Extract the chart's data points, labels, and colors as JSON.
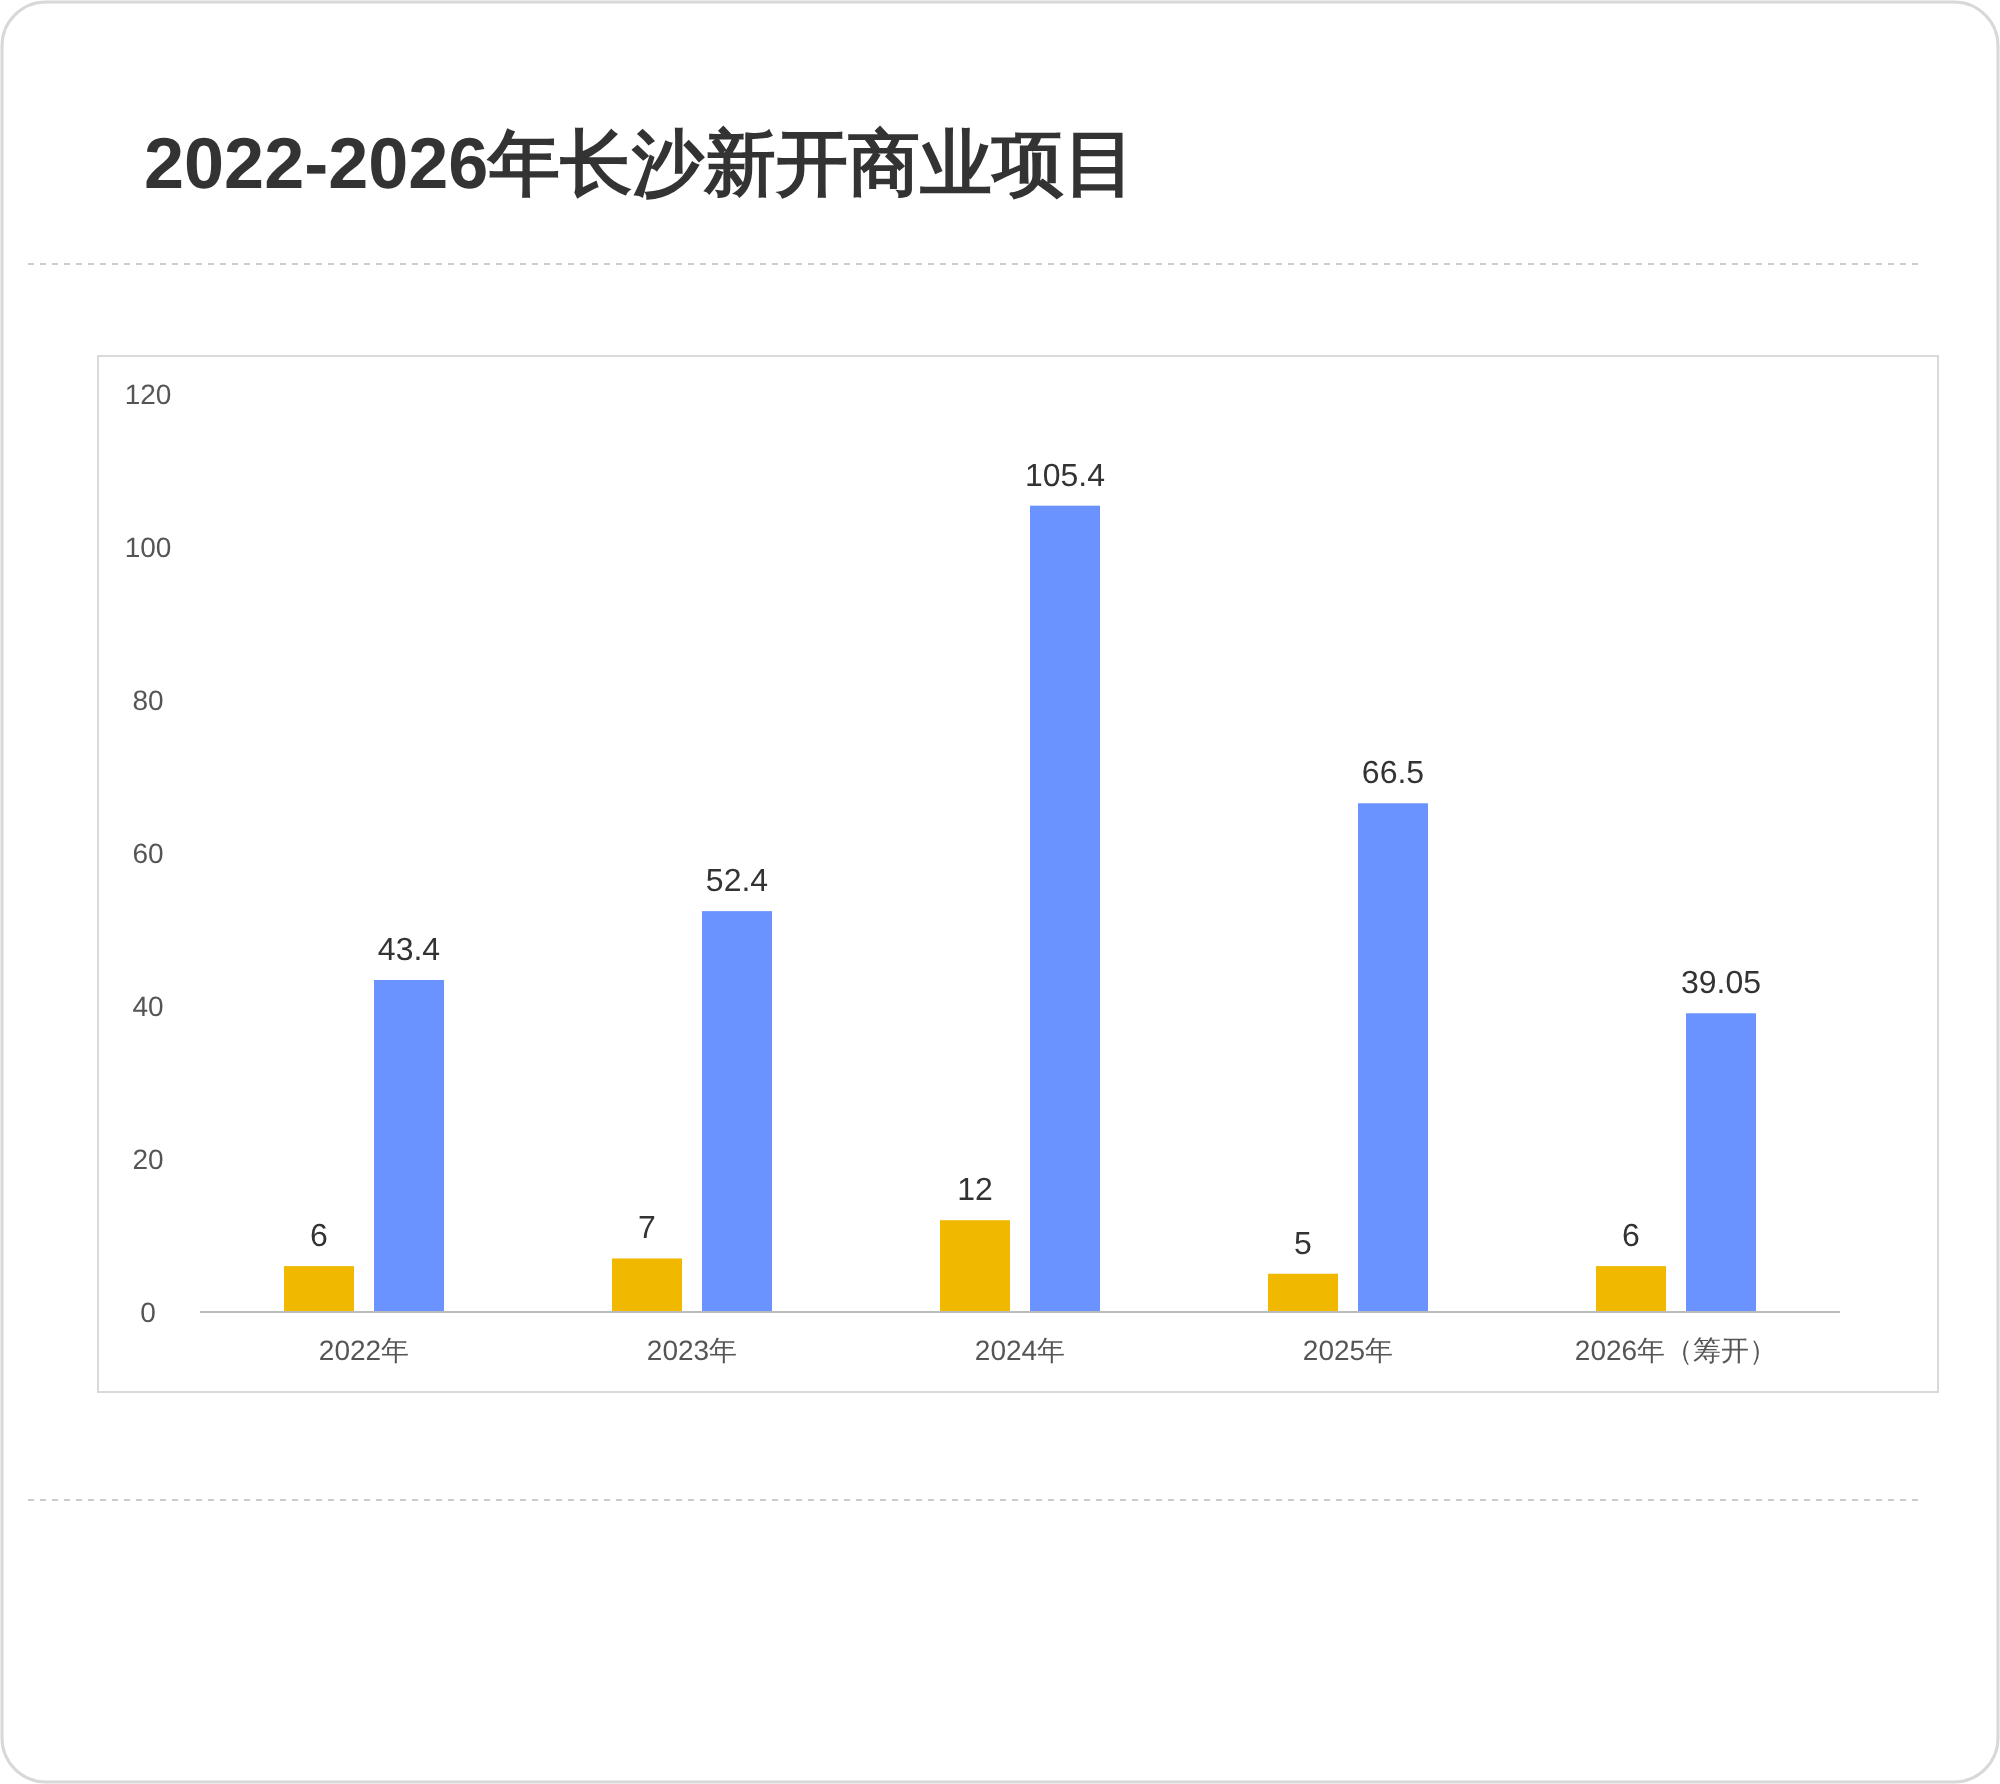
{
  "chart_data": {
    "type": "bar",
    "title": "2022-2026年长沙新开商业项目",
    "categories": [
      "2022年",
      "2023年",
      "2024年",
      "2025年",
      "2026年（筹开）"
    ],
    "series": [
      {
        "color": "#f0b900",
        "values": [
          6,
          7,
          12,
          5,
          6
        ]
      },
      {
        "color": "#6a93ff",
        "values": [
          43.4,
          52.4,
          105.4,
          66.5,
          39.05
        ]
      }
    ],
    "ylim": [
      0,
      120
    ],
    "yticks": [
      0,
      20,
      40,
      60,
      80,
      100,
      120
    ],
    "data_labels": true
  }
}
